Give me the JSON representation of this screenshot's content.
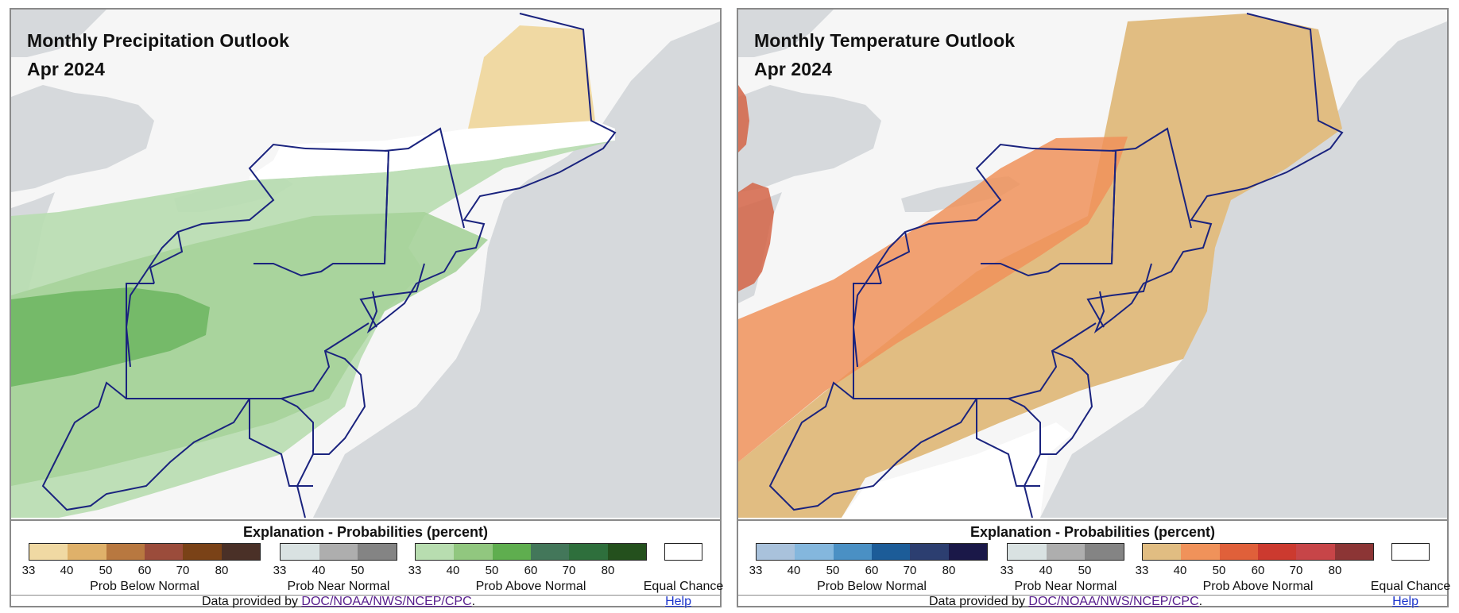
{
  "footer": {
    "credit_prefix": "Data provided by ",
    "credit_link": "DOC/NOAA/NWS/NCEP/CPC",
    "credit_suffix": ".",
    "help_label": "Help"
  },
  "panels": [
    {
      "title": "Monthly Precipitation Outlook",
      "period": "Apr 2024",
      "legend_title": "Explanation - Probabilities (percent)",
      "below": {
        "label": "Prob Below Normal",
        "ticks": [
          "33",
          "40",
          "50",
          "60",
          "70",
          "80"
        ],
        "colors": [
          "#f0d9a3",
          "#dfb16a",
          "#b87840",
          "#9b4c3b",
          "#7a4217",
          "#4a3027"
        ]
      },
      "near": {
        "label": "Prob Near Normal",
        "ticks": [
          "33",
          "40",
          "50"
        ],
        "colors": [
          "#d9e2e2",
          "#aeaeae",
          "#848484"
        ]
      },
      "above": {
        "label": "Prob Above Normal",
        "ticks": [
          "33",
          "40",
          "50",
          "60",
          "70",
          "80"
        ],
        "colors": [
          "#b8ddb0",
          "#91c77f",
          "#5fae4f",
          "#43775a",
          "#2e6f3c",
          "#24501d"
        ]
      },
      "equal": {
        "label": "Equal Chance"
      }
    },
    {
      "title": "Monthly Temperature Outlook",
      "period": "Apr 2024",
      "legend_title": "Explanation - Probabilities (percent)",
      "below": {
        "label": "Prob Below Normal",
        "ticks": [
          "33",
          "40",
          "50",
          "60",
          "70",
          "80"
        ],
        "colors": [
          "#a9c2dc",
          "#84b7dd",
          "#4a90c4",
          "#1c5c98",
          "#2c3e70",
          "#1a1848"
        ]
      },
      "near": {
        "label": "Prob Near Normal",
        "ticks": [
          "33",
          "40",
          "50"
        ],
        "colors": [
          "#d9e2e2",
          "#aeaeae",
          "#848484"
        ]
      },
      "above": {
        "label": "Prob Above Normal",
        "ticks": [
          "33",
          "40",
          "50",
          "60",
          "70",
          "80"
        ],
        "colors": [
          "#e1bd82",
          "#f0925a",
          "#e0603a",
          "#cc3a2f",
          "#c74548",
          "#8c3535"
        ]
      },
      "equal": {
        "label": "Equal Chance"
      }
    }
  ]
}
